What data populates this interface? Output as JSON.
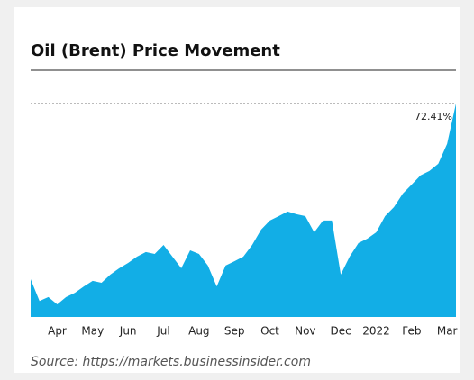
{
  "chart_data": {
    "type": "area",
    "title": "Oil (Brent) Price Movement",
    "source": "Source: https://markets.businessinsider.com",
    "categories": [
      null,
      null,
      null,
      "Apr",
      null,
      null,
      null,
      "May",
      null,
      null,
      null,
      "Jun",
      null,
      null,
      null,
      "Jul",
      null,
      null,
      null,
      "Aug",
      null,
      null,
      null,
      "Sep",
      null,
      null,
      null,
      "Oct",
      null,
      null,
      null,
      "Nov",
      null,
      null,
      null,
      "Dec",
      null,
      null,
      null,
      "2022",
      null,
      null,
      null,
      "Feb",
      null,
      null,
      null,
      "Mar",
      null
    ],
    "values": [
      0,
      -9,
      -7.4,
      -10.4,
      -7.4,
      -5.6,
      -3,
      -0.7,
      -1.5,
      1.9,
      4.5,
      6.7,
      9.3,
      11.2,
      10.4,
      14.1,
      9.3,
      4.5,
      11.9,
      10.4,
      5.6,
      -3,
      5.6,
      7.4,
      9.3,
      14.1,
      20.4,
      24.2,
      26,
      27.9,
      26.8,
      26,
      19.3,
      24.2,
      24.2,
      1.9,
      9.3,
      14.9,
      16.7,
      19.3,
      26,
      29.7,
      35.3,
      39,
      42.8,
      44.6,
      47.6,
      55.8,
      72.41
    ],
    "color": "#12aee6",
    "ylim": [
      -15.6,
      78
    ],
    "reference": {
      "value": 72.41,
      "label": "72.41%"
    }
  }
}
